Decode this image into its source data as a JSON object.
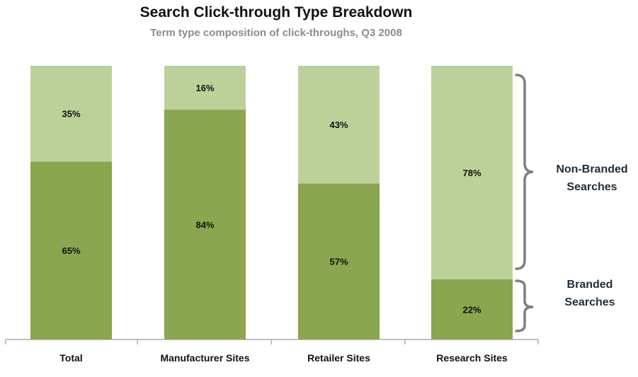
{
  "chart_data": {
    "type": "bar",
    "stacked": true,
    "percent": true,
    "title": "Search Click-through Type Breakdown",
    "subtitle": "Term type composition of click-throughs, Q3 2008",
    "categories": [
      "Total",
      "Manufacturer Sites",
      "Retailer Sites",
      "Research Sites"
    ],
    "series": [
      {
        "name": "Branded Searches",
        "values": [
          65,
          84,
          57,
          22
        ],
        "labels": [
          "65%",
          "84%",
          "57%",
          "22%"
        ],
        "color": "#8aa64e"
      },
      {
        "name": "Non-Branded Searches",
        "values": [
          35,
          16,
          43,
          78
        ],
        "labels": [
          "35%",
          "16%",
          "43%",
          "78%"
        ],
        "color": "#bcd19a"
      }
    ],
    "ylim": [
      0,
      100
    ],
    "grid": false,
    "annotations": {
      "non_branded": [
        "Non-Branded",
        "Searches"
      ],
      "branded": [
        "Branded",
        "Searches"
      ]
    }
  }
}
